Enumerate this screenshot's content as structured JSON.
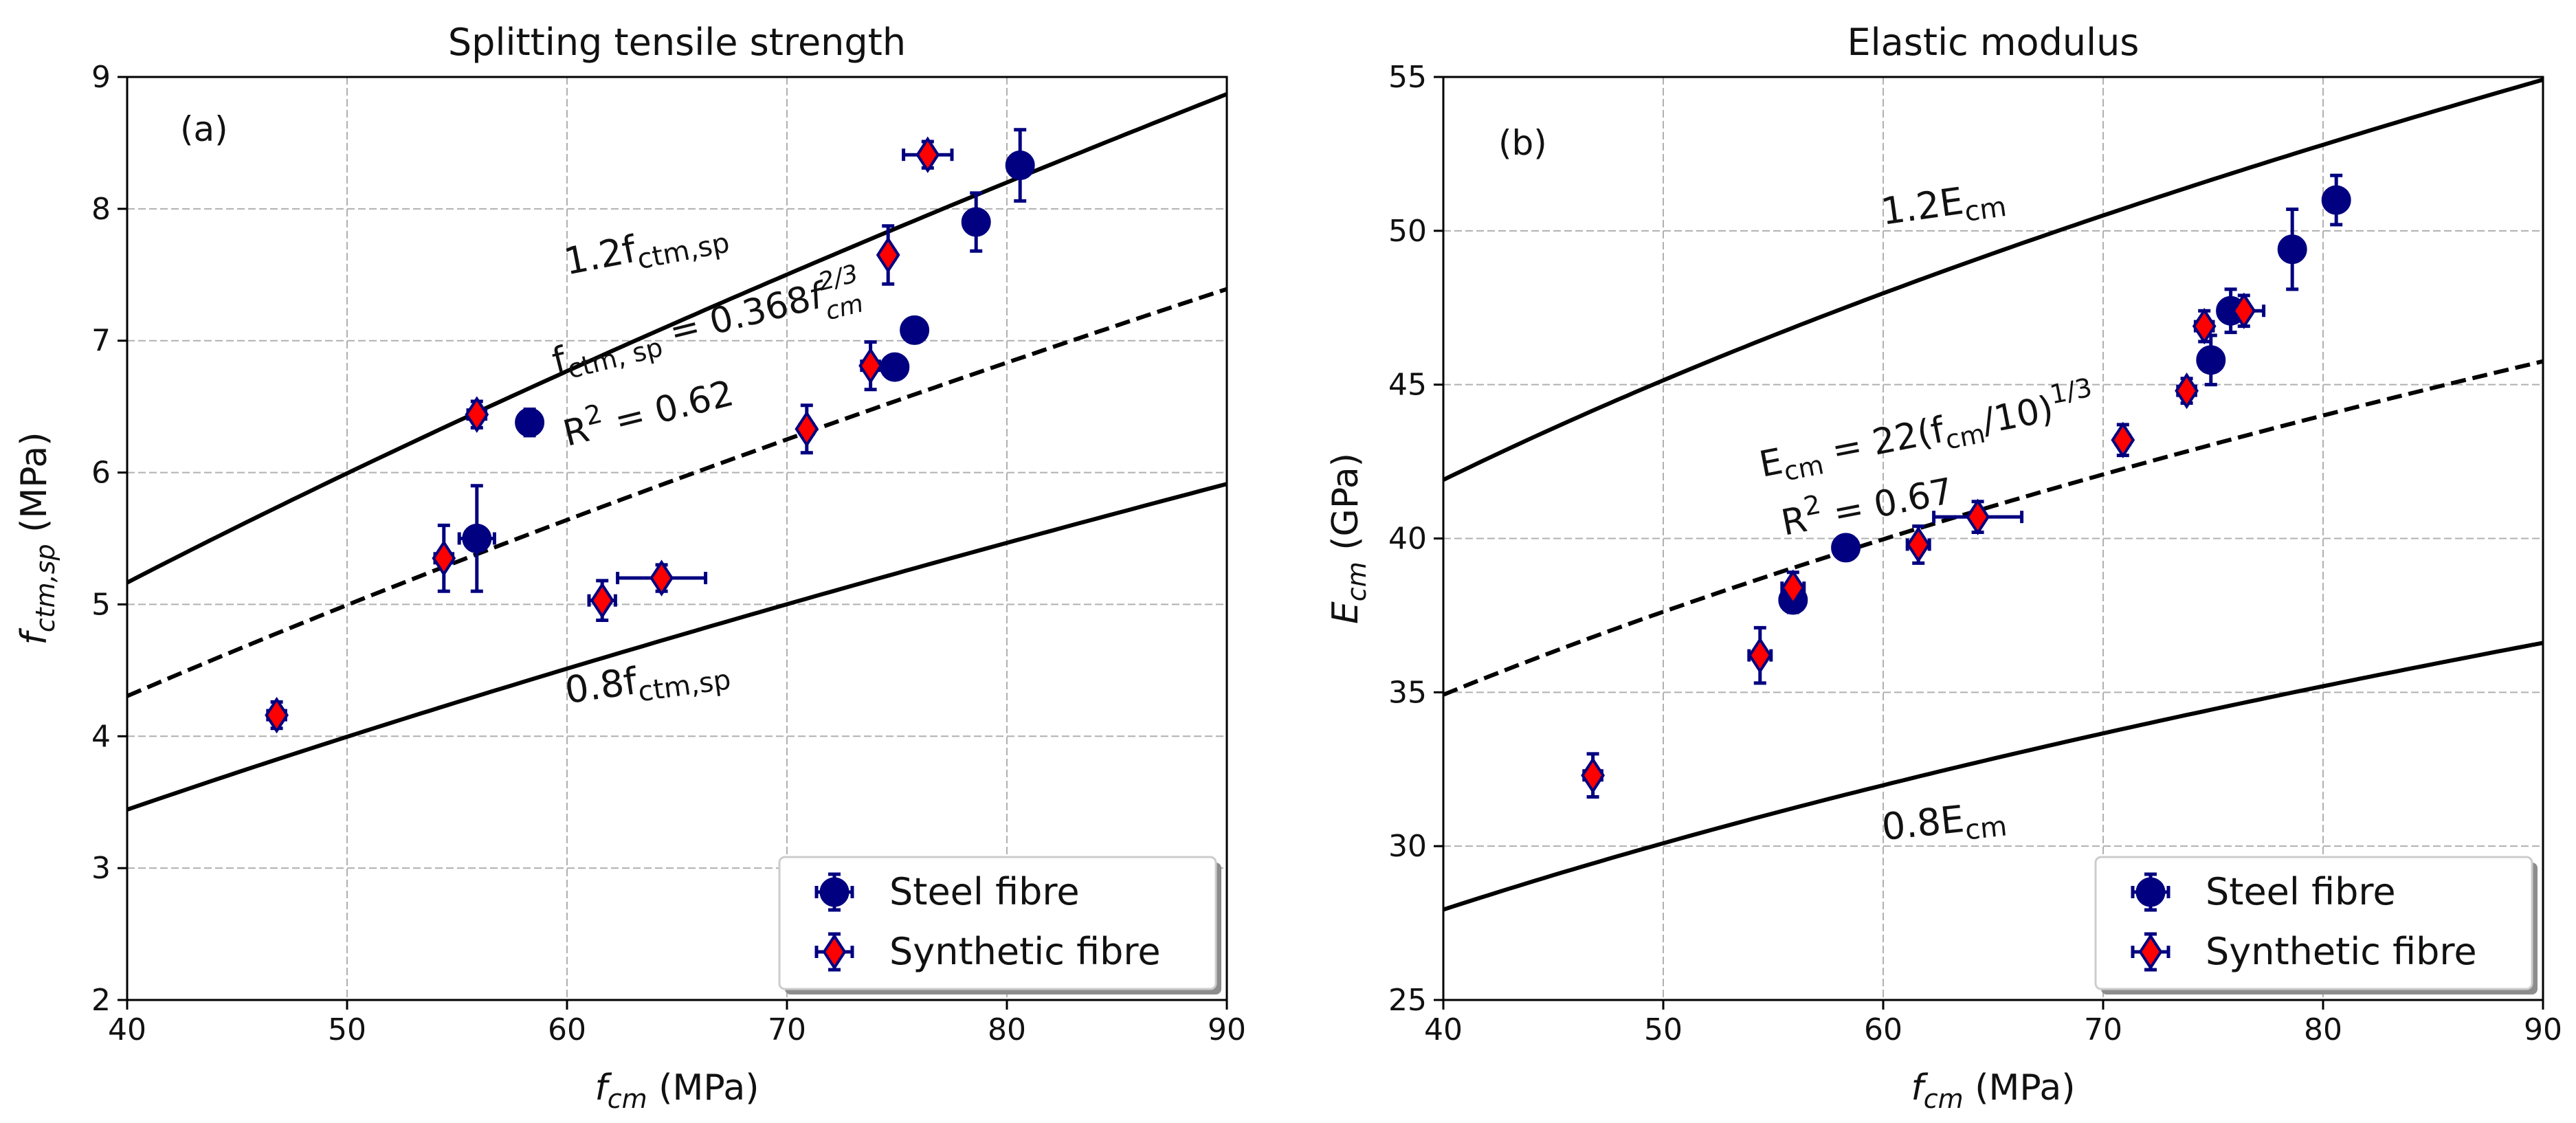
{
  "chart_data": [
    {
      "type": "scatter",
      "panel_label": "(a)",
      "title": "Splitting tensile strength",
      "xlabel": {
        "italic": "f",
        "sub": "cm",
        "units": " (MPa)"
      },
      "ylabel": {
        "italic": "f",
        "sub": "ctm,sp",
        "units": " (MPa)"
      },
      "xlim": [
        40,
        90
      ],
      "ylim": [
        2,
        9
      ],
      "xticks": [
        40,
        50,
        60,
        70,
        80,
        90
      ],
      "yticks": [
        2,
        3,
        4,
        5,
        6,
        7,
        8,
        9
      ],
      "grid": true,
      "legend": {
        "location": "lower-right",
        "entries": [
          {
            "label": "Steel fibre",
            "marker": "circle",
            "color": "#000080"
          },
          {
            "label": "Synthetic fibre",
            "marker": "diamond",
            "color": "#ff0000",
            "edge": "#000080"
          }
        ]
      },
      "curves": [
        {
          "name": "upper-bound",
          "coef": 0.4416,
          "exp": 0.6667,
          "style": "solid"
        },
        {
          "name": "fit",
          "coef": 0.368,
          "exp": 0.6667,
          "style": "dashed"
        },
        {
          "name": "lower-bound",
          "coef": 0.2944,
          "exp": 0.6667,
          "style": "solid"
        }
      ],
      "annotations": {
        "upper": {
          "main": "1.2f",
          "sub": "ctm,sp",
          "x": 60,
          "y": 7.5,
          "angle": -11
        },
        "lower": {
          "main": "0.8f",
          "sub": "ctm,sp",
          "x": 60,
          "y": 4.25,
          "angle": -8
        },
        "fit_eq": {
          "lhs": "f",
          "lhs_sub": "ctm, sp",
          "rhs": " = 0.368",
          "f": "f",
          "sup": "2/3",
          "sub": "cm",
          "x": 59.5,
          "y": 6.75,
          "angle": -14
        },
        "fit_r2": {
          "main": "R",
          "sup": "2",
          "rest": " = 0.62",
          "x": 60,
          "y": 6.2,
          "angle": -14
        }
      },
      "series": [
        {
          "name": "Steel fibre",
          "marker": "circle",
          "color": "#000080",
          "points": [
            {
              "x": 55.9,
              "y": 5.5,
              "xerr": 0.8,
              "yerr": 0.4
            },
            {
              "x": 58.3,
              "y": 6.38,
              "xerr": 0.4,
              "yerr": 0.1
            },
            {
              "x": 74.9,
              "y": 6.8,
              "xerr": 0.3,
              "yerr": 0.08
            },
            {
              "x": 75.8,
              "y": 7.08,
              "xerr": 0.3,
              "yerr": 0.05
            },
            {
              "x": 78.6,
              "y": 7.9,
              "xerr": 0.3,
              "yerr": 0.22
            },
            {
              "x": 80.6,
              "y": 8.33,
              "xerr": 0.3,
              "yerr": 0.27
            }
          ]
        },
        {
          "name": "Synthetic fibre",
          "marker": "diamond",
          "color": "#ff0000",
          "edge": "#000080",
          "points": [
            {
              "x": 46.8,
              "y": 4.16,
              "xerr": 0.4,
              "yerr": 0.1
            },
            {
              "x": 54.4,
              "y": 5.35,
              "xerr": 0.4,
              "yerr": 0.25
            },
            {
              "x": 55.9,
              "y": 6.44,
              "xerr": 0.4,
              "yerr": 0.1
            },
            {
              "x": 61.6,
              "y": 5.03,
              "xerr": 0.6,
              "yerr": 0.15
            },
            {
              "x": 64.3,
              "y": 5.2,
              "xerr": 2.0,
              "yerr": 0.1
            },
            {
              "x": 70.9,
              "y": 6.33,
              "xerr": 0.3,
              "yerr": 0.18
            },
            {
              "x": 73.8,
              "y": 6.81,
              "xerr": 0.4,
              "yerr": 0.18
            },
            {
              "x": 74.6,
              "y": 7.65,
              "xerr": 0.3,
              "yerr": 0.22
            },
            {
              "x": 76.4,
              "y": 8.41,
              "xerr": 1.1,
              "yerr": 0.1
            }
          ]
        }
      ]
    },
    {
      "type": "scatter",
      "panel_label": "(b)",
      "title": "Elastic modulus",
      "xlabel": {
        "italic": "f",
        "sub": "cm",
        "units": " (MPa)"
      },
      "ylabel": {
        "italic": "E",
        "sub": "cm",
        "units": " (GPa)"
      },
      "xlim": [
        40,
        90
      ],
      "ylim": [
        25,
        55
      ],
      "xticks": [
        40,
        50,
        60,
        70,
        80,
        90
      ],
      "yticks": [
        25,
        30,
        35,
        40,
        45,
        50,
        55
      ],
      "grid": true,
      "legend": {
        "location": "lower-right",
        "entries": [
          {
            "label": "Steel fibre",
            "marker": "circle",
            "color": "#000080"
          },
          {
            "label": "Synthetic fibre",
            "marker": "diamond",
            "color": "#ff0000",
            "edge": "#000080"
          }
        ]
      },
      "curves": [
        {
          "name": "upper-bound",
          "coef": 26.4,
          "scale": 10,
          "exp": 0.3333,
          "style": "solid"
        },
        {
          "name": "fit",
          "coef": 22,
          "scale": 10,
          "exp": 0.3333,
          "style": "dashed"
        },
        {
          "name": "lower-bound",
          "coef": 17.6,
          "scale": 10,
          "exp": 0.3333,
          "style": "solid"
        }
      ],
      "annotations": {
        "upper": {
          "main": "1.2E",
          "sub": "cm",
          "x": 60,
          "y": 50.2,
          "angle": -8
        },
        "lower": {
          "main": "0.8E",
          "sub": "cm",
          "x": 60,
          "y": 30.2,
          "angle": -6
        },
        "fit_eq": {
          "lhs": "E",
          "lhs_sub": "cm",
          "rhs": " = 22(f",
          "rhs_sub": "cm",
          "tail": "/10)",
          "sup": "1/3",
          "x": 54.5,
          "y": 42,
          "angle": -11
        },
        "fit_r2": {
          "main": "R",
          "sup": "2",
          "rest": " = 0.67",
          "x": 55.5,
          "y": 40.1,
          "angle": -11
        }
      },
      "series": [
        {
          "name": "Steel fibre",
          "marker": "circle",
          "color": "#000080",
          "points": [
            {
              "x": 55.9,
              "y": 38.0,
              "xerr": 0.5,
              "yerr": 0.4
            },
            {
              "x": 58.3,
              "y": 39.7,
              "xerr": 0.4,
              "yerr": 0.3
            },
            {
              "x": 74.9,
              "y": 45.8,
              "xerr": 0.5,
              "yerr": 0.8
            },
            {
              "x": 75.8,
              "y": 47.4,
              "xerr": 0.5,
              "yerr": 0.7
            },
            {
              "x": 78.6,
              "y": 49.4,
              "xerr": 0.3,
              "yerr": 1.3
            },
            {
              "x": 80.6,
              "y": 51.0,
              "xerr": 0.3,
              "yerr": 0.8
            }
          ]
        },
        {
          "name": "Synthetic fibre",
          "marker": "diamond",
          "color": "#ff0000",
          "edge": "#000080",
          "points": [
            {
              "x": 46.8,
              "y": 32.3,
              "xerr": 0.4,
              "yerr": 0.7
            },
            {
              "x": 54.4,
              "y": 36.2,
              "xerr": 0.5,
              "yerr": 0.9
            },
            {
              "x": 55.9,
              "y": 38.4,
              "xerr": 0.5,
              "yerr": 0.5
            },
            {
              "x": 61.6,
              "y": 39.8,
              "xerr": 0.5,
              "yerr": 0.6
            },
            {
              "x": 64.3,
              "y": 40.7,
              "xerr": 2.0,
              "yerr": 0.5
            },
            {
              "x": 70.9,
              "y": 43.2,
              "xerr": 0.3,
              "yerr": 0.5
            },
            {
              "x": 73.8,
              "y": 44.8,
              "xerr": 0.4,
              "yerr": 0.4
            },
            {
              "x": 74.6,
              "y": 46.9,
              "xerr": 0.4,
              "yerr": 0.5
            },
            {
              "x": 76.4,
              "y": 47.4,
              "xerr": 0.9,
              "yerr": 0.5
            }
          ]
        }
      ]
    }
  ]
}
